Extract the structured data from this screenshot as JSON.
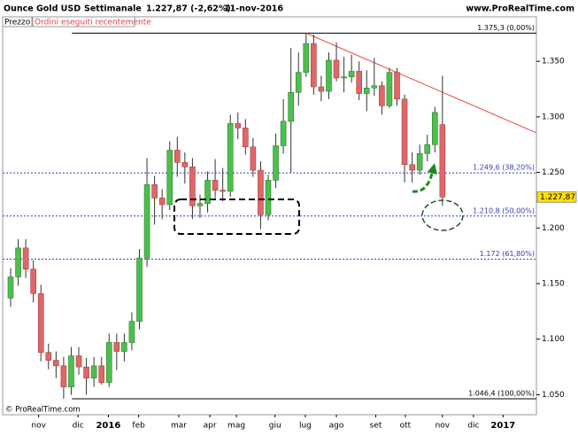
{
  "header": {
    "instrument": "Ounce Gold USD",
    "period": "Settimanale",
    "quote": "1.227,87 (-2,62%)",
    "date": "11-nov-2016",
    "site": "www.ProRealTime.com",
    "panel": "Prezzo",
    "orders": "Ordini eseguiti recentemente",
    "copyright": "© ProRealTime.com"
  },
  "chart_data": {
    "type": "candlestick",
    "up_color": "#4cbf4c",
    "down_color": "#e06767",
    "open": [
      1137,
      1156,
      1182,
      1163,
      1141,
      1088,
      1081,
      1076,
      1057,
      1085,
      1075,
      1065,
      1076,
      1061,
      1097,
      1089,
      1097,
      1116,
      1173,
      1239,
      1227,
      1221,
      1270,
      1259,
      1255,
      1220,
      1222,
      1243,
      1234,
      1233,
      1294,
      1290,
      1273,
      1252,
      1212,
      1243,
      1274,
      1296,
      1322,
      1340,
      1366,
      1327,
      1323,
      1351,
      1335,
      1336,
      1341,
      1321,
      1326,
      1328,
      1310,
      1340,
      1316,
      1257,
      1252,
      1267,
      1275,
      1293
    ],
    "high": [
      1164,
      1190,
      1190,
      1171,
      1149,
      1096,
      1089,
      1084,
      1093,
      1093,
      1083,
      1084,
      1084,
      1105,
      1105,
      1105,
      1124,
      1181,
      1263,
      1247,
      1235,
      1278,
      1282,
      1268,
      1263,
      1230,
      1251,
      1262,
      1254,
      1302,
      1304,
      1298,
      1281,
      1260,
      1248,
      1285,
      1316,
      1362,
      1358,
      1375.3,
      1374,
      1337,
      1358,
      1367,
      1354,
      1356,
      1350,
      1342,
      1353,
      1332,
      1344,
      1344,
      1320,
      1268,
      1275,
      1284,
      1309,
      1337
    ],
    "low": [
      1129,
      1148,
      1155,
      1133,
      1080,
      1073,
      1065,
      1046.4,
      1050,
      1068,
      1050,
      1057,
      1059,
      1057,
      1072,
      1080,
      1090,
      1109,
      1165,
      1203,
      1208,
      1216,
      1246,
      1240,
      1208,
      1209,
      1214,
      1227,
      1224,
      1228,
      1280,
      1266,
      1246,
      1199,
      1207,
      1236,
      1267,
      1250,
      1310,
      1336,
      1320,
      1314,
      1316,
      1332,
      1322,
      1331,
      1315,
      1305,
      1319,
      1302,
      1308,
      1310,
      1241,
      1241,
      1248,
      1260,
      1268,
      1220
    ],
    "close": [
      1156,
      1182,
      1163,
      1141,
      1088,
      1081,
      1076,
      1057,
      1085,
      1075,
      1065,
      1076,
      1061,
      1097,
      1089,
      1097,
      1116,
      1173,
      1239,
      1227,
      1221,
      1270,
      1259,
      1255,
      1220,
      1222,
      1243,
      1234,
      1233,
      1294,
      1290,
      1273,
      1252,
      1212,
      1243,
      1274,
      1296,
      1322,
      1340,
      1366,
      1327,
      1323,
      1351,
      1335,
      1336,
      1341,
      1321,
      1326,
      1328,
      1310,
      1340,
      1316,
      1257,
      1252,
      1267,
      1275,
      1304,
      1227.87
    ],
    "xlim": [
      -1.05,
      69.4
    ],
    "xticks": [
      {
        "value": 3.7,
        "label": "nov"
      },
      {
        "value": 8.9,
        "label": "dic"
      },
      {
        "value": 12.9,
        "label": "2016"
      },
      {
        "value": 16.9,
        "label": "feb"
      },
      {
        "value": 22.2,
        "label": "mar"
      },
      {
        "value": 26.3,
        "label": "apr"
      },
      {
        "value": 29.8,
        "label": "mag"
      },
      {
        "value": 34.9,
        "label": "giu"
      },
      {
        "value": 38.9,
        "label": "lug"
      },
      {
        "value": 43,
        "label": "ago"
      },
      {
        "value": 48.2,
        "label": "set"
      },
      {
        "value": 52.1,
        "label": "ott"
      },
      {
        "value": 57,
        "label": "nov"
      },
      {
        "value": 61.1,
        "label": "dic"
      },
      {
        "value": 65,
        "label": "2017"
      }
    ],
    "ylim": [
      1032,
      1390
    ],
    "yticks": [
      {
        "value": 1050,
        "label": "1.050"
      },
      {
        "value": 1100,
        "label": "1.100"
      },
      {
        "value": 1150,
        "label": "1.150"
      },
      {
        "value": 1200,
        "label": "1.200"
      },
      {
        "value": 1250,
        "label": "1.250"
      },
      {
        "value": 1300,
        "label": "1.300"
      },
      {
        "value": 1350,
        "label": "1.350"
      }
    ],
    "levels": [
      {
        "value": 1375.3,
        "label": "1.375,3 (0,00%)",
        "color": "#000000",
        "dashed": false
      },
      {
        "value": 1249.6,
        "label": "1.249,6 (38,20%)",
        "color": "#3a3ab0",
        "dashed": true
      },
      {
        "value": 1210.8,
        "label": "1.210,8 (50,00%)",
        "color": "#3a3ab0",
        "dashed": true
      },
      {
        "value": 1172,
        "label": "1.172 (61,80%)",
        "color": "#3a3ab0",
        "dashed": true
      },
      {
        "value": 1046.4,
        "label": "1.046,4 (100,00%)",
        "color": "#000000",
        "dashed": false
      }
    ],
    "trendline": {
      "color": "#f04040",
      "x": [
        39,
        69.4
      ],
      "y": [
        1375.3,
        1285.6
      ]
    },
    "last": {
      "value": 1227.87,
      "label": "1.227,87",
      "color": "#ffe000"
    }
  }
}
